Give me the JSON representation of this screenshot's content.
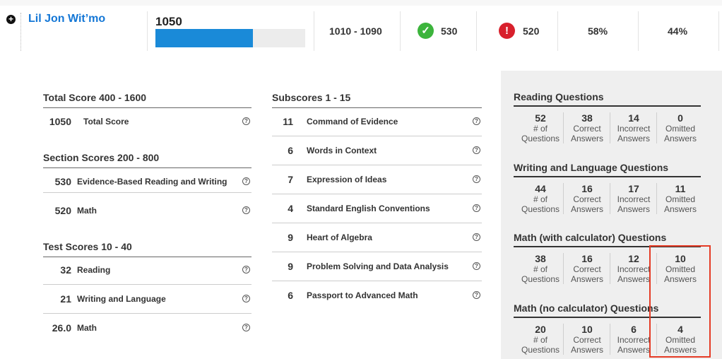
{
  "student": {
    "name": "Lil Jon Wit’mo",
    "total_score": "1050",
    "score_fraction": 0.65,
    "score_range": "1010 - 1090",
    "correct_count": "530",
    "incorrect_count": "520",
    "pct_a": "58%",
    "pct_b": "44%"
  },
  "icons": {
    "expand": "plus-circle-icon",
    "correct": "check-circle-icon",
    "incorrect": "alert-circle-icon",
    "help": "question-circle-icon"
  },
  "colors": {
    "accent": "#1a8ad8",
    "name_link": "#1477d6",
    "correct": "#3cb43c",
    "incorrect": "#d8202c",
    "highlight": "#e53b25"
  },
  "total_section": {
    "heading": "Total Score 400 - 1600",
    "rows": [
      {
        "value": "1050",
        "label": "Total Score"
      }
    ]
  },
  "section_scores": {
    "heading": "Section Scores 200 - 800",
    "rows": [
      {
        "value": "530",
        "label": "Evidence-Based Reading and Writing"
      },
      {
        "value": "520",
        "label": "Math"
      }
    ]
  },
  "test_scores": {
    "heading": "Test Scores 10 - 40",
    "rows": [
      {
        "value": "32",
        "label": "Reading"
      },
      {
        "value": "21",
        "label": "Writing and Language"
      },
      {
        "value": "26.0",
        "label": "Math"
      }
    ]
  },
  "subscores": {
    "heading": "Subscores 1 - 15",
    "rows": [
      {
        "value": "11",
        "label": "Command of Evidence"
      },
      {
        "value": "6",
        "label": "Words in Context"
      },
      {
        "value": "7",
        "label": "Expression of Ideas"
      },
      {
        "value": "4",
        "label": "Standard English Conventions"
      },
      {
        "value": "9",
        "label": "Heart of Algebra"
      },
      {
        "value": "9",
        "label": "Problem Solving and Data Analysis"
      },
      {
        "value": "6",
        "label": "Passport to Advanced Math"
      }
    ]
  },
  "question_panels": [
    {
      "title": "Reading Questions",
      "stats": [
        {
          "value": "52",
          "l1": "# of",
          "l2": "Questions"
        },
        {
          "value": "38",
          "l1": "Correct",
          "l2": "Answers"
        },
        {
          "value": "14",
          "l1": "Incorrect",
          "l2": "Answers"
        },
        {
          "value": "0",
          "l1": "Omitted",
          "l2": "Answers"
        }
      ]
    },
    {
      "title": "Writing and Language Questions",
      "stats": [
        {
          "value": "44",
          "l1": "# of",
          "l2": "Questions"
        },
        {
          "value": "16",
          "l1": "Correct",
          "l2": "Answers"
        },
        {
          "value": "17",
          "l1": "Incorrect",
          "l2": "Answers"
        },
        {
          "value": "11",
          "l1": "Omitted",
          "l2": "Answers"
        }
      ]
    },
    {
      "title": "Math (with calculator) Questions",
      "stats": [
        {
          "value": "38",
          "l1": "# of",
          "l2": "Questions"
        },
        {
          "value": "16",
          "l1": "Correct",
          "l2": "Answers"
        },
        {
          "value": "12",
          "l1": "Incorrect",
          "l2": "Answers"
        },
        {
          "value": "10",
          "l1": "Omitted",
          "l2": "Answers"
        }
      ]
    },
    {
      "title": "Math (no calculator) Questions",
      "stats": [
        {
          "value": "20",
          "l1": "# of",
          "l2": "Questions"
        },
        {
          "value": "10",
          "l1": "Correct",
          "l2": "Answers"
        },
        {
          "value": "6",
          "l1": "Incorrect",
          "l2": "Answers"
        },
        {
          "value": "4",
          "l1": "Omitted",
          "l2": "Answers"
        }
      ]
    }
  ]
}
